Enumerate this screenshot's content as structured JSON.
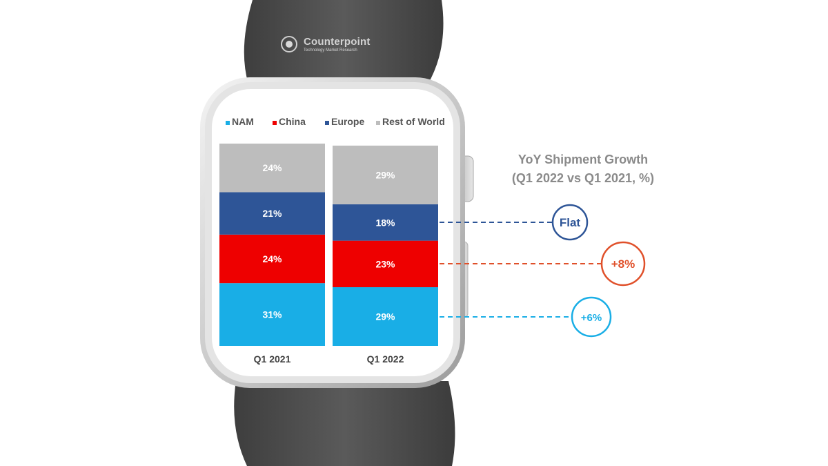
{
  "watermark": {
    "brand": "Counterpoint",
    "tagline": "Technology Market Research"
  },
  "growth_panel": {
    "title_line1": "YoY Shipment Growth",
    "title_line2": "(Q1 2022 vs Q1 2021, %)"
  },
  "colors": {
    "NAM": "#19aee6",
    "China": "#ee0000",
    "Europe": "#2e5597",
    "Rest of World": "#bdbdbd",
    "growth_flat": "#2e5597",
    "growth_china": "#e0502a",
    "growth_nam": "#19aee6"
  },
  "chart_data": {
    "type": "bar",
    "stacked": true,
    "percent_scale": true,
    "categories": [
      "Q1 2021",
      "Q1 2022"
    ],
    "series": [
      {
        "name": "NAM",
        "values": [
          31,
          29
        ],
        "labels": [
          "31%",
          "29%"
        ]
      },
      {
        "name": "China",
        "values": [
          24,
          23
        ],
        "labels": [
          "24%",
          "23%"
        ]
      },
      {
        "name": "Europe",
        "values": [
          21,
          18
        ],
        "labels": [
          "21%",
          "18%"
        ]
      },
      {
        "name": "Rest of World",
        "values": [
          24,
          29
        ],
        "labels": [
          "24%",
          "29%"
        ]
      }
    ],
    "legend": [
      "NAM",
      "China",
      "Europe",
      "Rest of World"
    ],
    "legend_position": "top",
    "ylim": [
      0,
      100
    ],
    "annotations": [
      {
        "series": "Europe",
        "text": "Flat"
      },
      {
        "series": "China",
        "text": "+8%"
      },
      {
        "series": "NAM",
        "text": "+6%"
      }
    ]
  }
}
